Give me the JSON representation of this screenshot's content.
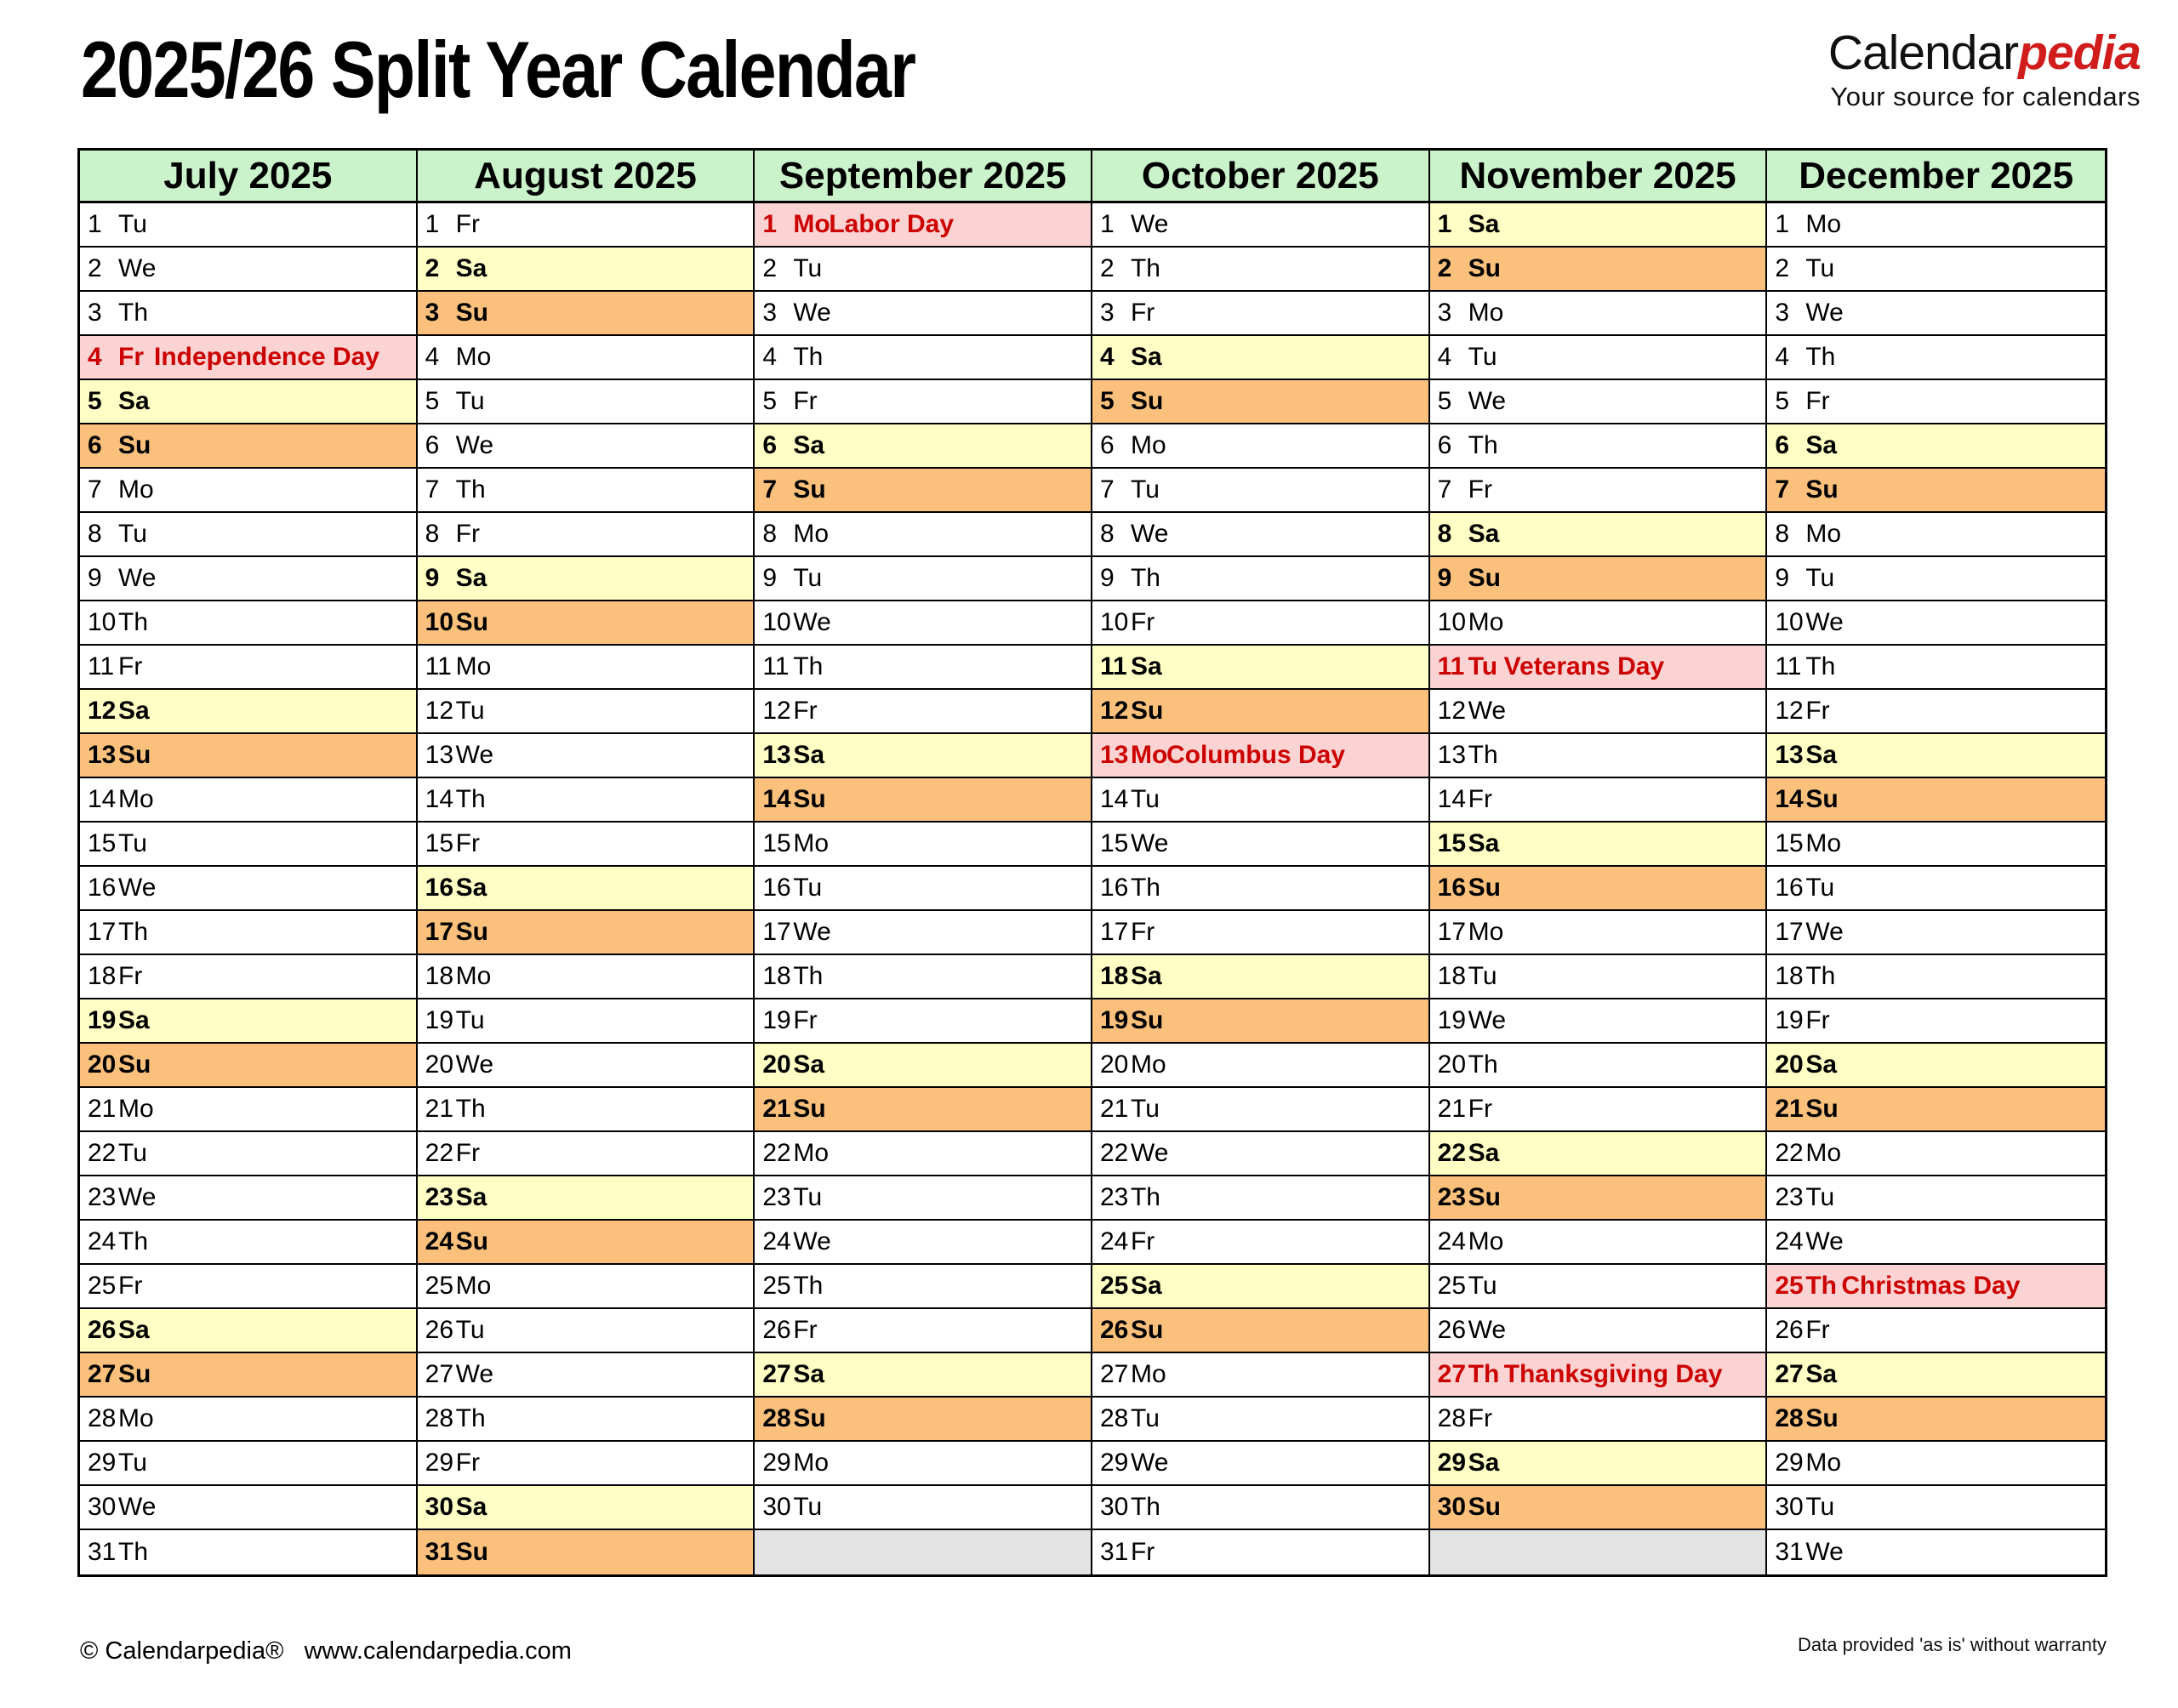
{
  "title": "2025/26 Split Year Calendar",
  "logo": {
    "black": "Calendar",
    "red": "pedia",
    "tagline": "Your source for calendars"
  },
  "footer": {
    "copyright": "© Calendarpedia®   www.calendarpedia.com",
    "disclaimer": "Data provided 'as is' without warranty"
  },
  "colors": {
    "month_header_bg": "#cbf3cb",
    "saturday_bg": "#ffffc5",
    "sunday_bg": "#fbc17c",
    "holiday_bg": "#fcd3d3",
    "empty_bg": "#e3e3e3",
    "holiday_text": "#cc0000",
    "logo_red": "#d11c1c"
  },
  "calendar": {
    "weekday_labels": [
      "Mo",
      "Tu",
      "We",
      "Th",
      "Fr",
      "Sa",
      "Su"
    ],
    "rows": 31,
    "months": [
      {
        "name": "July 2025",
        "days": 31,
        "first_weekday": 1,
        "holidays": {
          "4": "Independence Day"
        }
      },
      {
        "name": "August 2025",
        "days": 31,
        "first_weekday": 4,
        "holidays": {}
      },
      {
        "name": "September 2025",
        "days": 30,
        "first_weekday": 0,
        "holidays": {
          "1": "Labor Day"
        }
      },
      {
        "name": "October 2025",
        "days": 31,
        "first_weekday": 2,
        "holidays": {
          "13": "Columbus Day"
        }
      },
      {
        "name": "November 2025",
        "days": 30,
        "first_weekday": 5,
        "holidays": {
          "11": "Veterans Day",
          "27": "Thanksgiving Day"
        }
      },
      {
        "name": "December 2025",
        "days": 31,
        "first_weekday": 0,
        "holidays": {
          "25": "Christmas Day"
        }
      }
    ]
  }
}
